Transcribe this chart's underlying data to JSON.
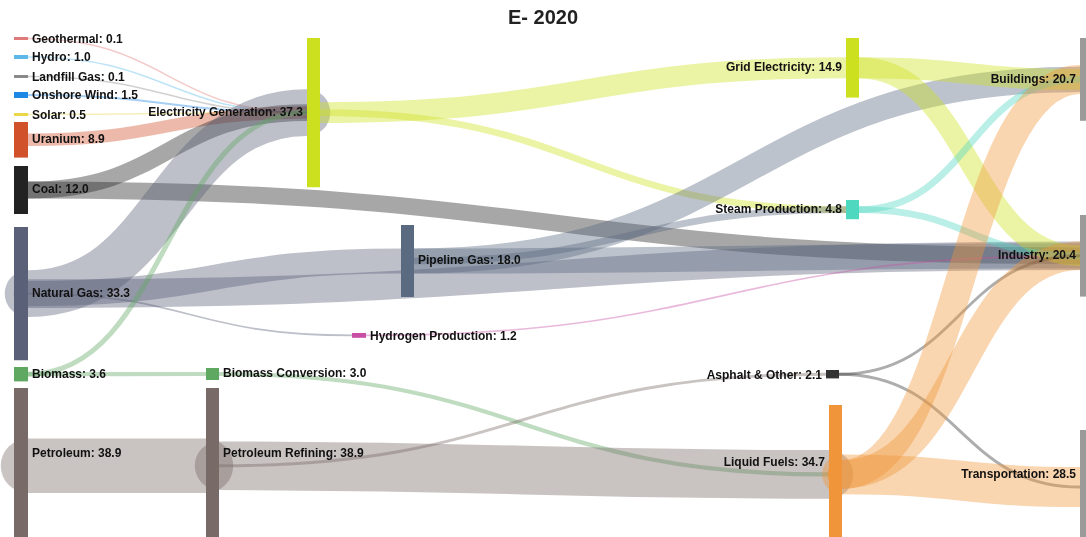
{
  "chart_data": {
    "type": "other",
    "title": "E- 2020",
    "categories": [
      "Geothermal",
      "Hydro",
      "Landfill Gas",
      "Onshore Wind",
      "Solar",
      "Uranium",
      "Coal",
      "Natural Gas",
      "Biomass",
      "Petroleum",
      "Electricity Generation",
      "Biomass Conversion",
      "Petroleum Refining",
      "Pipeline Gas",
      "Hydrogen Production",
      "Grid Electricity",
      "Steam Production",
      "Asphalt & Other",
      "Liquid Fuels",
      "Buildings",
      "Industry",
      "Transportation"
    ],
    "values": [
      0.1,
      1.0,
      0.1,
      1.5,
      0.5,
      8.9,
      12.0,
      33.3,
      3.6,
      38.9,
      37.3,
      3.0,
      38.9,
      18.0,
      1.2,
      14.9,
      4.8,
      2.1,
      34.7,
      20.7,
      20.4,
      28.5
    ],
    "colors": [
      "#e07a7a",
      "#5bb8e8",
      "#8a8a8a",
      "#1e88e5",
      "#e8d84a",
      "#d0512a",
      "#222222",
      "#5a6078",
      "#5fa862",
      "#786a66",
      "#cde01f",
      "#5fa862",
      "#786a66",
      "#5a6a80",
      "#c94fa5",
      "#cde01f",
      "#4fd8c0",
      "#333333",
      "#f0953a",
      "#9a9a9a",
      "#9a9a9a",
      "#9a9a9a"
    ],
    "value_labels": [
      ": 0.1",
      ": 1.0",
      ": 0.1",
      ": 1.5",
      ": 0.5",
      ": 8.9",
      ": 12.0",
      ": 33.3",
      ": 3.6",
      ": 38.9",
      ": 37.3",
      ": 3.0",
      ": 38.9",
      ": 18.0",
      ": 1.2",
      ": 14.9",
      ": 4.8",
      ": 2.1",
      ": 34.7",
      ": 20.7",
      ": 20.4",
      ": 28.5"
    ]
  }
}
